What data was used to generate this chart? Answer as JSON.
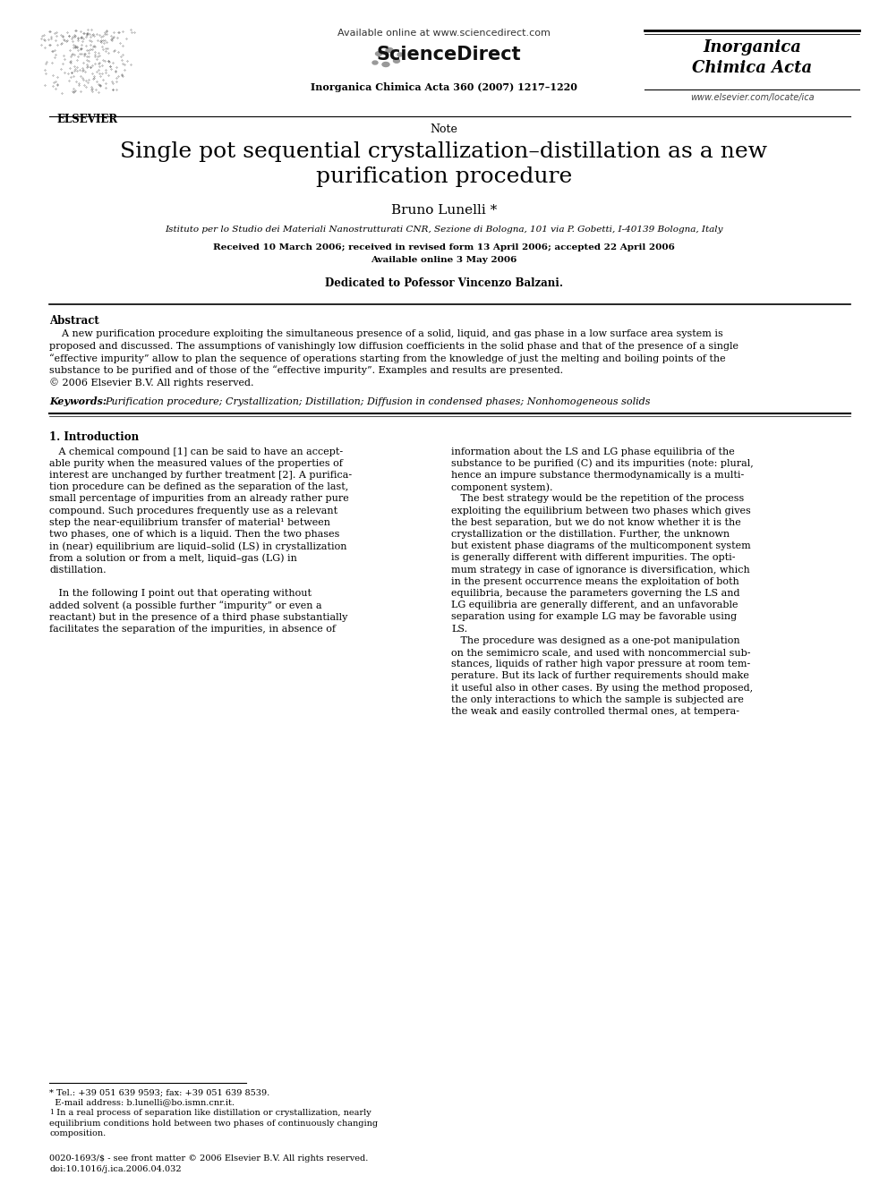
{
  "background_color": "#ffffff",
  "page_width": 9.92,
  "page_height": 13.23,
  "dpi": 100,
  "header": {
    "available_online_text": "Available online at www.sciencedirect.com",
    "sciencedirect_text": "ScienceDirect",
    "journal_name_line1": "Inorganica",
    "journal_name_line2": "Chimica Acta",
    "journal_ref": "Inorganica Chimica Acta 360 (2007) 1217–1220",
    "website": "www.elsevier.com/locate/ica",
    "elsevier_label": "ELSEVIER"
  },
  "article_type": "Note",
  "title_line1": "Single pot sequential crystallization–distillation as a new",
  "title_line2": "purification procedure",
  "author": "Bruno Lunelli *",
  "affiliation": "Istituto per lo Studio dei Materiali Nanostrutturati CNR, Sezione di Bologna, 101 via P. Gobetti, I-40139 Bologna, Italy",
  "received_text": "Received 10 March 2006; received in revised form 13 April 2006; accepted 22 April 2006",
  "available_online": "Available online 3 May 2006",
  "dedication": "Dedicated to Pofessor Vincenzo Balzani.",
  "abstract_title": "Abstract",
  "keywords_label": "Keywords:",
  "keywords_text": "Purification procedure; Crystallization; Distillation; Diffusion in condensed phases; Nonhomogeneous solids",
  "section1_title": "1. Introduction",
  "footnote_star": "* Tel.: +39 051 639 9593; fax: +39 051 639 8539.",
  "footnote_email": "  E-mail address: b.lunelli@bo.ismn.cnr.it.",
  "footnote1_super": "1",
  "footnote1_text": " In a real process of separation like distillation or crystallization, nearly\n   equilibrium conditions hold between two phases of continuously changing\n   composition.",
  "footer_issn": "0020-1693/$ - see front matter © 2006 Elsevier B.V. All rights reserved.",
  "footer_doi": "doi:10.1016/j.ica.2006.04.032"
}
